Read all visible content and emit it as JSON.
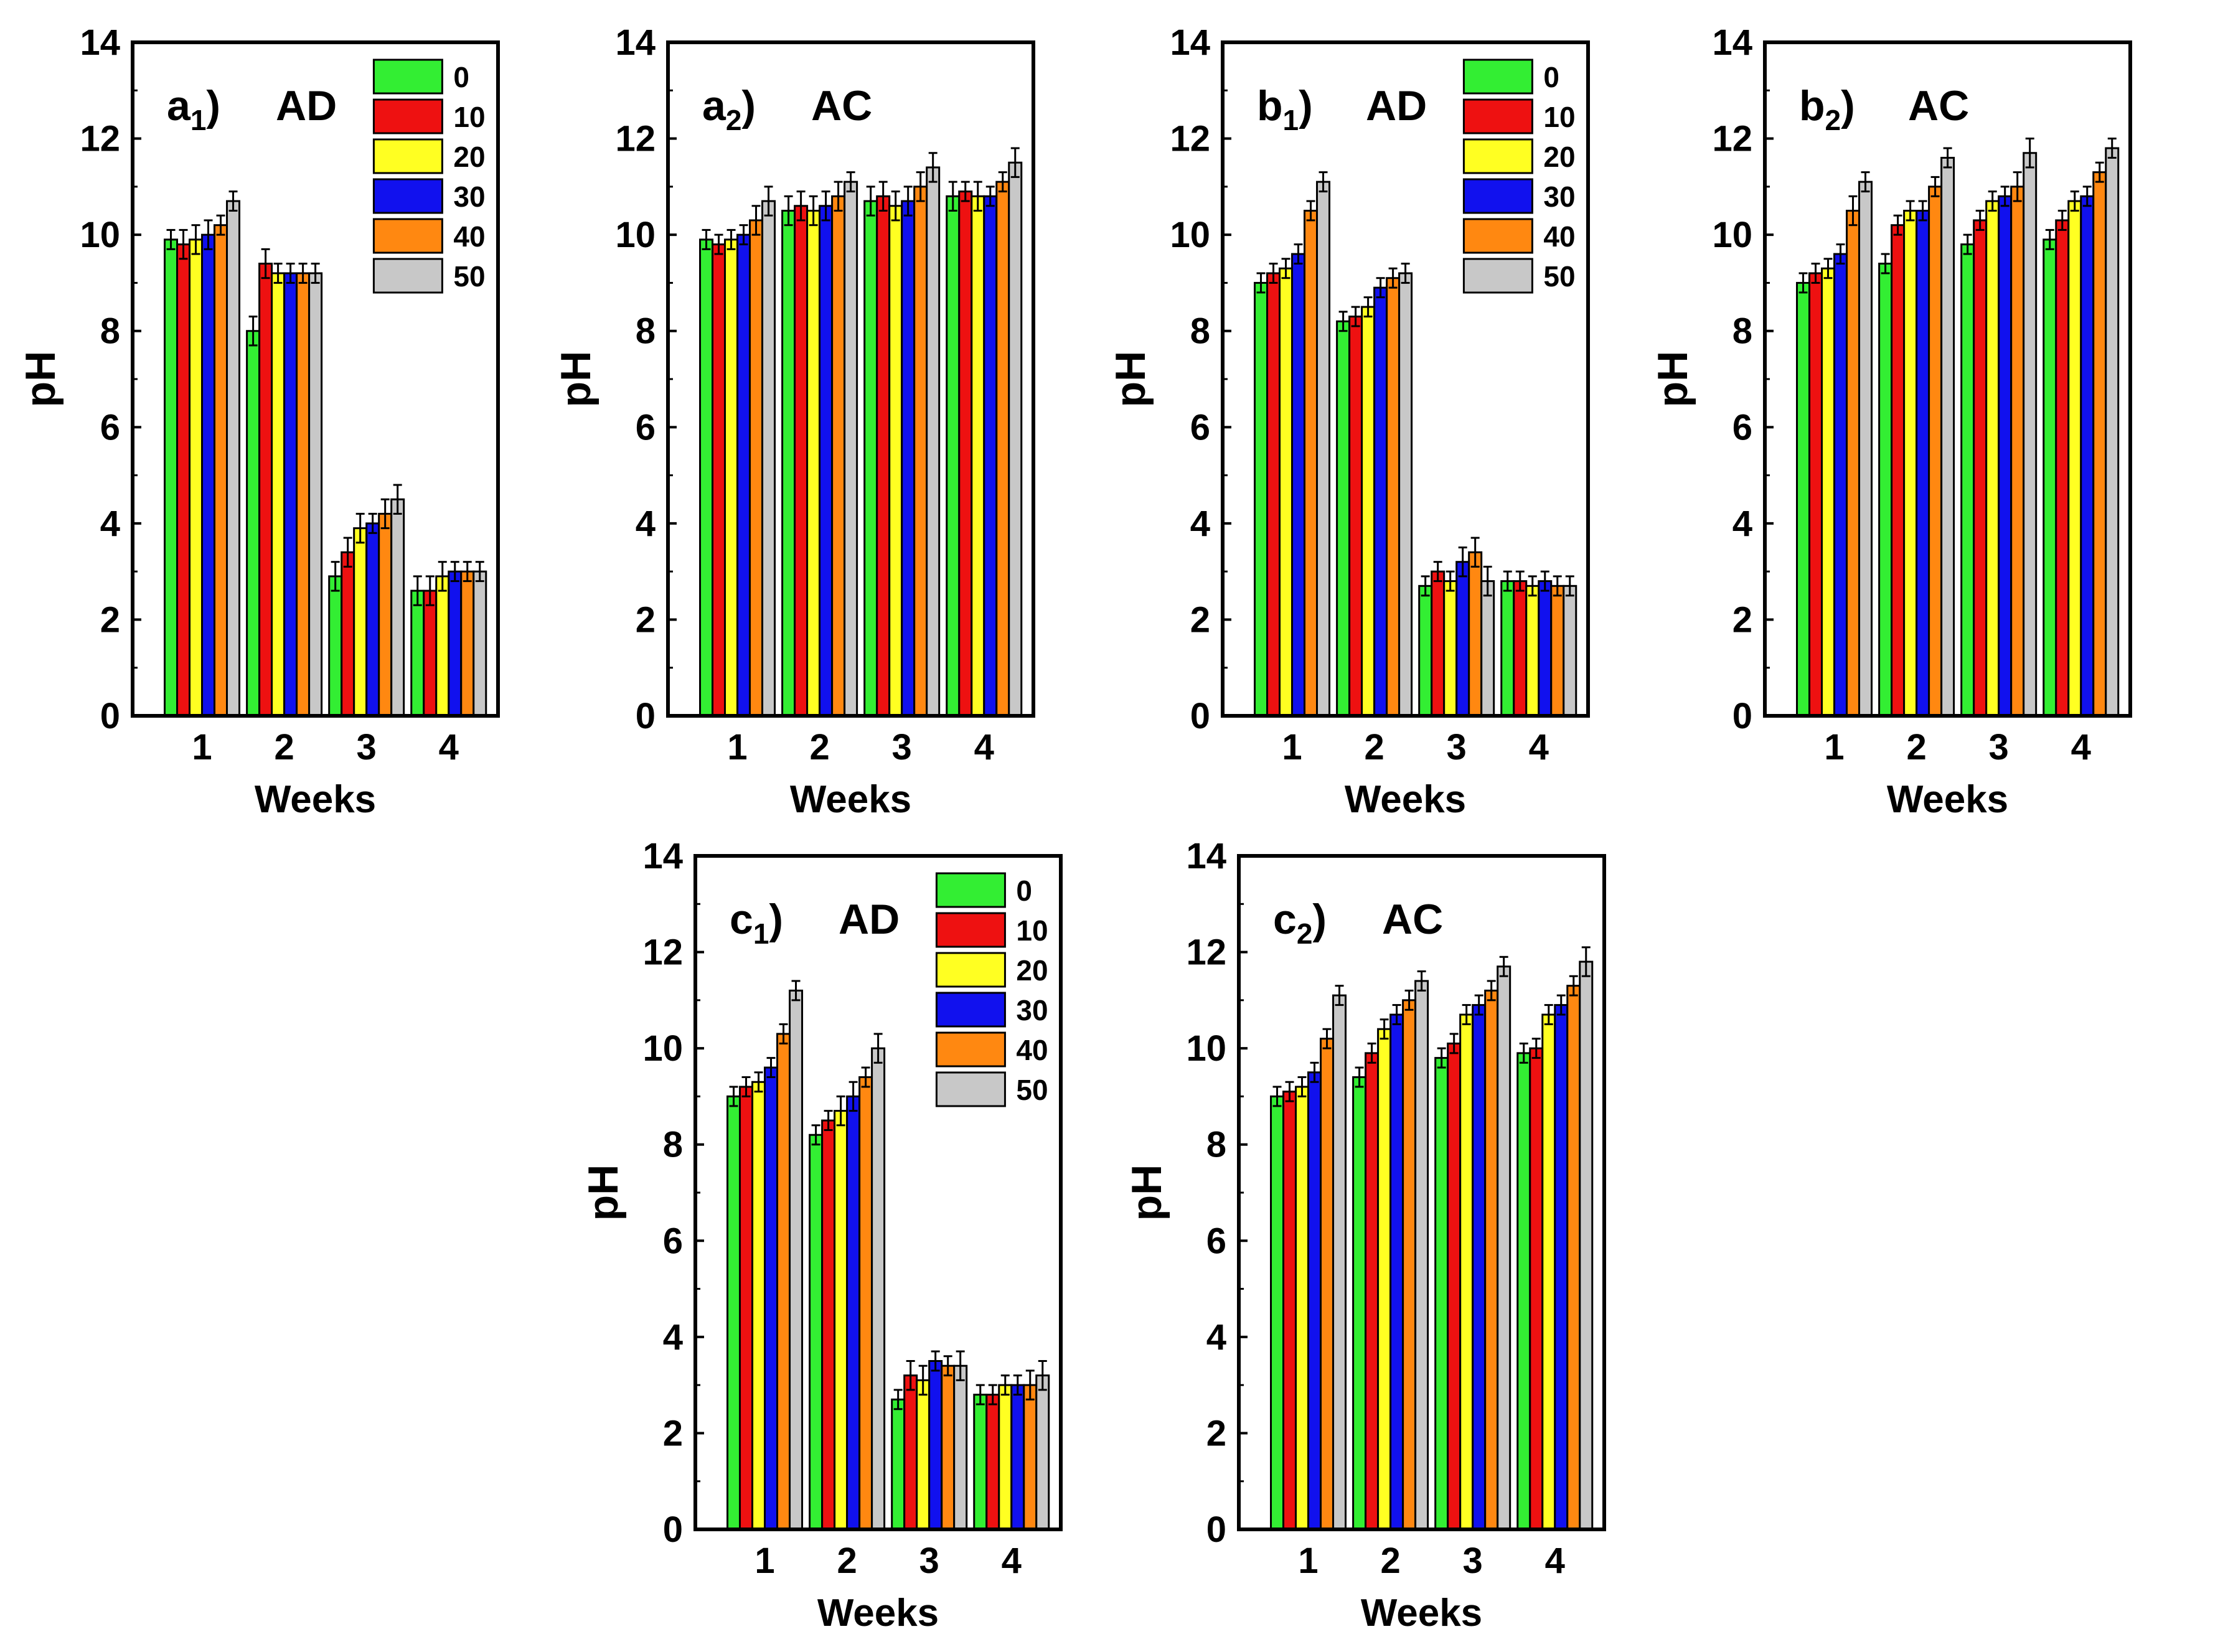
{
  "figure": {
    "categories": [
      "1",
      "2",
      "3",
      "4"
    ],
    "xlabel": "Weeks",
    "ylabel": "pH",
    "ylim": [
      0,
      14
    ],
    "yticks": [
      "0",
      "2",
      "4",
      "6",
      "8",
      "10",
      "12",
      "14"
    ],
    "legend": [
      {
        "label": "0",
        "color": "#33ee33"
      },
      {
        "label": "10",
        "color": "#ee1111"
      },
      {
        "label": "20",
        "color": "#ffff22"
      },
      {
        "label": "30",
        "color": "#1111ee"
      },
      {
        "label": "40",
        "color": "#ff8811"
      },
      {
        "label": "50",
        "color": "#c8c8c8"
      }
    ]
  },
  "chart_data": [
    {
      "type": "bar",
      "panel_label": "a",
      "panel_sub": "1",
      "panel_mode": "AD",
      "title": "a1) AD",
      "xlabel": "Weeks",
      "ylabel": "pH",
      "ylim": [
        0,
        14
      ],
      "categories": [
        "1",
        "2",
        "3",
        "4"
      ],
      "legend_shown": true,
      "series": [
        {
          "name": "0",
          "values": [
            9.9,
            8.0,
            2.9,
            2.6
          ],
          "errors": [
            0.2,
            0.3,
            0.3,
            0.3
          ]
        },
        {
          "name": "10",
          "values": [
            9.8,
            9.4,
            3.4,
            2.6
          ],
          "errors": [
            0.3,
            0.3,
            0.3,
            0.3
          ]
        },
        {
          "name": "20",
          "values": [
            9.9,
            9.2,
            3.9,
            2.9
          ],
          "errors": [
            0.3,
            0.2,
            0.3,
            0.3
          ]
        },
        {
          "name": "30",
          "values": [
            10.0,
            9.2,
            4.0,
            3.0
          ],
          "errors": [
            0.3,
            0.2,
            0.2,
            0.2
          ]
        },
        {
          "name": "40",
          "values": [
            10.2,
            9.2,
            4.2,
            3.0
          ],
          "errors": [
            0.2,
            0.2,
            0.3,
            0.2
          ]
        },
        {
          "name": "50",
          "values": [
            10.7,
            9.2,
            4.5,
            3.0
          ],
          "errors": [
            0.2,
            0.2,
            0.3,
            0.2
          ]
        }
      ]
    },
    {
      "type": "bar",
      "panel_label": "a",
      "panel_sub": "2",
      "panel_mode": "AC",
      "title": "a2) AC",
      "xlabel": "Weeks",
      "ylabel": "pH",
      "ylim": [
        0,
        14
      ],
      "categories": [
        "1",
        "2",
        "3",
        "4"
      ],
      "legend_shown": false,
      "series": [
        {
          "name": "0",
          "values": [
            9.9,
            10.5,
            10.7,
            10.8
          ],
          "errors": [
            0.2,
            0.3,
            0.3,
            0.3
          ]
        },
        {
          "name": "10",
          "values": [
            9.8,
            10.6,
            10.8,
            10.9
          ],
          "errors": [
            0.2,
            0.3,
            0.3,
            0.2
          ]
        },
        {
          "name": "20",
          "values": [
            9.9,
            10.5,
            10.6,
            10.8
          ],
          "errors": [
            0.2,
            0.3,
            0.3,
            0.3
          ]
        },
        {
          "name": "30",
          "values": [
            10.0,
            10.6,
            10.7,
            10.8
          ],
          "errors": [
            0.2,
            0.3,
            0.3,
            0.2
          ]
        },
        {
          "name": "40",
          "values": [
            10.3,
            10.8,
            11.0,
            11.1
          ],
          "errors": [
            0.3,
            0.3,
            0.3,
            0.2
          ]
        },
        {
          "name": "50",
          "values": [
            10.7,
            11.1,
            11.4,
            11.5
          ],
          "errors": [
            0.3,
            0.2,
            0.3,
            0.3
          ]
        }
      ]
    },
    {
      "type": "bar",
      "panel_label": "b",
      "panel_sub": "1",
      "panel_mode": "AD",
      "title": "b1) AD",
      "xlabel": "Weeks",
      "ylabel": "pH",
      "ylim": [
        0,
        14
      ],
      "categories": [
        "1",
        "2",
        "3",
        "4"
      ],
      "legend_shown": true,
      "series": [
        {
          "name": "0",
          "values": [
            9.0,
            8.2,
            2.7,
            2.8
          ],
          "errors": [
            0.2,
            0.2,
            0.2,
            0.2
          ]
        },
        {
          "name": "10",
          "values": [
            9.2,
            8.3,
            3.0,
            2.8
          ],
          "errors": [
            0.2,
            0.2,
            0.2,
            0.2
          ]
        },
        {
          "name": "20",
          "values": [
            9.3,
            8.5,
            2.8,
            2.7
          ],
          "errors": [
            0.2,
            0.2,
            0.2,
            0.2
          ]
        },
        {
          "name": "30",
          "values": [
            9.6,
            8.9,
            3.2,
            2.8
          ],
          "errors": [
            0.2,
            0.2,
            0.3,
            0.2
          ]
        },
        {
          "name": "40",
          "values": [
            10.5,
            9.1,
            3.4,
            2.7
          ],
          "errors": [
            0.2,
            0.2,
            0.3,
            0.2
          ]
        },
        {
          "name": "50",
          "values": [
            11.1,
            9.2,
            2.8,
            2.7
          ],
          "errors": [
            0.2,
            0.2,
            0.3,
            0.2
          ]
        }
      ]
    },
    {
      "type": "bar",
      "panel_label": "b",
      "panel_sub": "2",
      "panel_mode": "AC",
      "title": "b2) AC",
      "xlabel": "Weeks",
      "ylabel": "pH",
      "ylim": [
        0,
        14
      ],
      "categories": [
        "1",
        "2",
        "3",
        "4"
      ],
      "legend_shown": false,
      "series": [
        {
          "name": "0",
          "values": [
            9.0,
            9.4,
            9.8,
            9.9
          ],
          "errors": [
            0.2,
            0.2,
            0.2,
            0.2
          ]
        },
        {
          "name": "10",
          "values": [
            9.2,
            10.2,
            10.3,
            10.3
          ],
          "errors": [
            0.2,
            0.2,
            0.2,
            0.2
          ]
        },
        {
          "name": "20",
          "values": [
            9.3,
            10.5,
            10.7,
            10.7
          ],
          "errors": [
            0.2,
            0.2,
            0.2,
            0.2
          ]
        },
        {
          "name": "30",
          "values": [
            9.6,
            10.5,
            10.8,
            10.8
          ],
          "errors": [
            0.2,
            0.2,
            0.2,
            0.2
          ]
        },
        {
          "name": "40",
          "values": [
            10.5,
            11.0,
            11.0,
            11.3
          ],
          "errors": [
            0.3,
            0.2,
            0.3,
            0.2
          ]
        },
        {
          "name": "50",
          "values": [
            11.1,
            11.6,
            11.7,
            11.8
          ],
          "errors": [
            0.2,
            0.2,
            0.3,
            0.2
          ]
        }
      ]
    },
    {
      "type": "bar",
      "panel_label": "c",
      "panel_sub": "1",
      "panel_mode": "AD",
      "title": "c1) AD",
      "xlabel": "Weeks",
      "ylabel": "pH",
      "ylim": [
        0,
        14
      ],
      "categories": [
        "1",
        "2",
        "3",
        "4"
      ],
      "legend_shown": true,
      "series": [
        {
          "name": "0",
          "values": [
            9.0,
            8.2,
            2.7,
            2.8
          ],
          "errors": [
            0.2,
            0.2,
            0.2,
            0.2
          ]
        },
        {
          "name": "10",
          "values": [
            9.2,
            8.5,
            3.2,
            2.8
          ],
          "errors": [
            0.2,
            0.2,
            0.3,
            0.2
          ]
        },
        {
          "name": "20",
          "values": [
            9.3,
            8.7,
            3.1,
            3.0
          ],
          "errors": [
            0.2,
            0.3,
            0.3,
            0.2
          ]
        },
        {
          "name": "30",
          "values": [
            9.6,
            9.0,
            3.5,
            3.0
          ],
          "errors": [
            0.2,
            0.3,
            0.2,
            0.2
          ]
        },
        {
          "name": "40",
          "values": [
            10.3,
            9.4,
            3.4,
            3.0
          ],
          "errors": [
            0.2,
            0.2,
            0.2,
            0.3
          ]
        },
        {
          "name": "50",
          "values": [
            11.2,
            10.0,
            3.4,
            3.2
          ],
          "errors": [
            0.2,
            0.3,
            0.3,
            0.3
          ]
        }
      ]
    },
    {
      "type": "bar",
      "panel_label": "c",
      "panel_sub": "2",
      "panel_mode": "AC",
      "title": "c2) AC",
      "xlabel": "Weeks",
      "ylabel": "pH",
      "ylim": [
        0,
        14
      ],
      "categories": [
        "1",
        "2",
        "3",
        "4"
      ],
      "legend_shown": false,
      "series": [
        {
          "name": "0",
          "values": [
            9.0,
            9.4,
            9.8,
            9.9
          ],
          "errors": [
            0.2,
            0.2,
            0.2,
            0.2
          ]
        },
        {
          "name": "10",
          "values": [
            9.1,
            9.9,
            10.1,
            10.0
          ],
          "errors": [
            0.2,
            0.2,
            0.2,
            0.2
          ]
        },
        {
          "name": "20",
          "values": [
            9.2,
            10.4,
            10.7,
            10.7
          ],
          "errors": [
            0.2,
            0.2,
            0.2,
            0.2
          ]
        },
        {
          "name": "30",
          "values": [
            9.5,
            10.7,
            10.9,
            10.9
          ],
          "errors": [
            0.2,
            0.2,
            0.2,
            0.2
          ]
        },
        {
          "name": "40",
          "values": [
            10.2,
            11.0,
            11.2,
            11.3
          ],
          "errors": [
            0.2,
            0.2,
            0.2,
            0.2
          ]
        },
        {
          "name": "50",
          "values": [
            11.1,
            11.4,
            11.7,
            11.8
          ],
          "errors": [
            0.2,
            0.2,
            0.2,
            0.3
          ]
        }
      ]
    }
  ]
}
